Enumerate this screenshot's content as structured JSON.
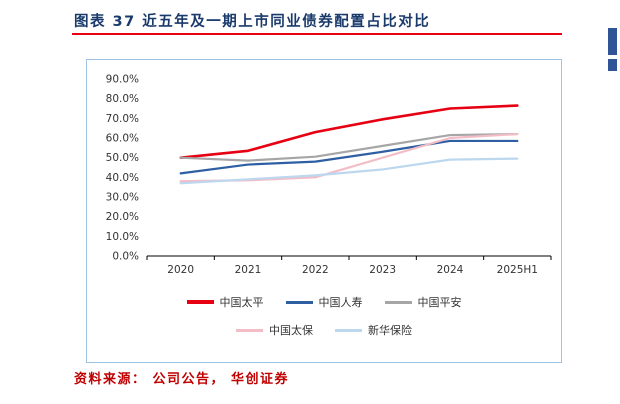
{
  "page": {
    "title": "图表 37  近五年及一期上市同业债券配置占比对比",
    "source": "资料来源： 公司公告， 华创证券",
    "accent_red": "#e60012",
    "title_color": "#1a3a6b",
    "source_color": "#c00000",
    "edge_bar_color": "#2f5597",
    "chart_border_color": "#9dc3e6"
  },
  "chart_data": {
    "type": "line",
    "title": "近五年及一期上市同业债券配置占比对比",
    "categories": [
      "2020",
      "2021",
      "2022",
      "2023",
      "2024",
      "2025H1"
    ],
    "series": [
      {
        "name": "中国太平",
        "color": "#e60012",
        "width": 2.6,
        "values": [
          50.0,
          53.5,
          63.0,
          69.5,
          75.0,
          76.5
        ]
      },
      {
        "name": "中国人寿",
        "color": "#2e5fa3",
        "width": 2.2,
        "values": [
          42.0,
          46.5,
          48.0,
          53.0,
          58.5,
          58.5
        ]
      },
      {
        "name": "中国平安",
        "color": "#a6a6a6",
        "width": 2.2,
        "values": [
          50.0,
          48.5,
          50.5,
          56.0,
          61.5,
          62.0
        ]
      },
      {
        "name": "中国太保",
        "color": "#f2bdc7",
        "width": 2.2,
        "values": [
          38.0,
          38.5,
          40.0,
          50.0,
          60.0,
          62.0
        ]
      },
      {
        "name": "新华保险",
        "color": "#bdd7ee",
        "width": 2.2,
        "values": [
          37.0,
          39.0,
          41.0,
          44.0,
          49.0,
          49.5
        ]
      }
    ],
    "ylim": [
      0,
      90
    ],
    "yticks": [
      {
        "value": 0,
        "label": "0.0%"
      },
      {
        "value": 10,
        "label": "10.0%"
      },
      {
        "value": 20,
        "label": "20.0%"
      },
      {
        "value": 30,
        "label": "30.0%"
      },
      {
        "value": 40,
        "label": "40.0%"
      },
      {
        "value": 50,
        "label": "50.0%"
      },
      {
        "value": 60,
        "label": "60.0%"
      },
      {
        "value": 70,
        "label": "70.0%"
      },
      {
        "value": 80,
        "label": "80.0%"
      },
      {
        "value": 90,
        "label": "90.0%"
      }
    ],
    "grid": false,
    "legend_position": "bottom",
    "legend_rows": [
      [
        0,
        1,
        2
      ],
      [
        3,
        4
      ]
    ]
  }
}
